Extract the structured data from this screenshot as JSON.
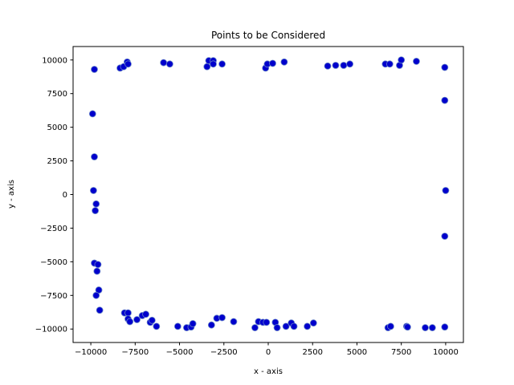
{
  "chart_data": {
    "type": "scatter",
    "title": "Points to be Considered",
    "xlabel": "x - axis",
    "ylabel": "y - axis",
    "xlim": [
      -11000,
      11000
    ],
    "ylim": [
      -11000,
      11000
    ],
    "xticks": [
      -10000,
      -7500,
      -5000,
      -2500,
      0,
      2500,
      5000,
      7500,
      10000
    ],
    "yticks": [
      -10000,
      -7500,
      -5000,
      -2500,
      0,
      2500,
      5000,
      7500,
      10000
    ],
    "grid": false,
    "marker_color": "#0000cc",
    "marker_edge_color": "#6a86c8",
    "points": [
      [
        -9900,
        6000
      ],
      [
        -9800,
        2800
      ],
      [
        -9850,
        300
      ],
      [
        -9700,
        -700
      ],
      [
        -9750,
        -1200
      ],
      [
        -9800,
        -5100
      ],
      [
        -9600,
        -5200
      ],
      [
        -9650,
        -5700
      ],
      [
        -9550,
        -7100
      ],
      [
        -9700,
        -7500
      ],
      [
        -9500,
        -8600
      ],
      [
        -9800,
        9300
      ],
      [
        -8350,
        9400
      ],
      [
        -8150,
        9500
      ],
      [
        -7950,
        9850
      ],
      [
        -7900,
        9700
      ],
      [
        -5900,
        9800
      ],
      [
        -5550,
        9700
      ],
      [
        -3450,
        9500
      ],
      [
        -3350,
        9950
      ],
      [
        -3100,
        9950
      ],
      [
        -3100,
        9700
      ],
      [
        -2600,
        9700
      ],
      [
        -150,
        9400
      ],
      [
        -50,
        9700
      ],
      [
        250,
        9750
      ],
      [
        900,
        9850
      ],
      [
        3350,
        9550
      ],
      [
        3800,
        9600
      ],
      [
        4250,
        9600
      ],
      [
        4600,
        9700
      ],
      [
        6600,
        9700
      ],
      [
        6850,
        9700
      ],
      [
        7400,
        9600
      ],
      [
        7500,
        10000
      ],
      [
        8350,
        9900
      ],
      [
        9950,
        9450
      ],
      [
        9950,
        7000
      ],
      [
        10000,
        300
      ],
      [
        9950,
        -3100
      ],
      [
        -8100,
        -8800
      ],
      [
        -7900,
        -8800
      ],
      [
        -7900,
        -9250
      ],
      [
        -7800,
        -9450
      ],
      [
        -7400,
        -9300
      ],
      [
        -7100,
        -9000
      ],
      [
        -6900,
        -8900
      ],
      [
        -6650,
        -9500
      ],
      [
        -6550,
        -9350
      ],
      [
        -6300,
        -9800
      ],
      [
        -5100,
        -9800
      ],
      [
        -4600,
        -9900
      ],
      [
        -4350,
        -9850
      ],
      [
        -4250,
        -9600
      ],
      [
        -3200,
        -9700
      ],
      [
        -2900,
        -9200
      ],
      [
        -2600,
        -9150
      ],
      [
        -1950,
        -9450
      ],
      [
        -750,
        -9900
      ],
      [
        -550,
        -9450
      ],
      [
        -300,
        -9500
      ],
      [
        -100,
        -9500
      ],
      [
        400,
        -9500
      ],
      [
        500,
        -9900
      ],
      [
        1000,
        -9800
      ],
      [
        1300,
        -9550
      ],
      [
        1450,
        -9800
      ],
      [
        2200,
        -9800
      ],
      [
        2550,
        -9550
      ],
      [
        6750,
        -9900
      ],
      [
        6900,
        -9800
      ],
      [
        7800,
        -9800
      ],
      [
        7850,
        -9850
      ],
      [
        8850,
        -9900
      ],
      [
        9250,
        -9900
      ],
      [
        9950,
        -9850
      ]
    ]
  }
}
